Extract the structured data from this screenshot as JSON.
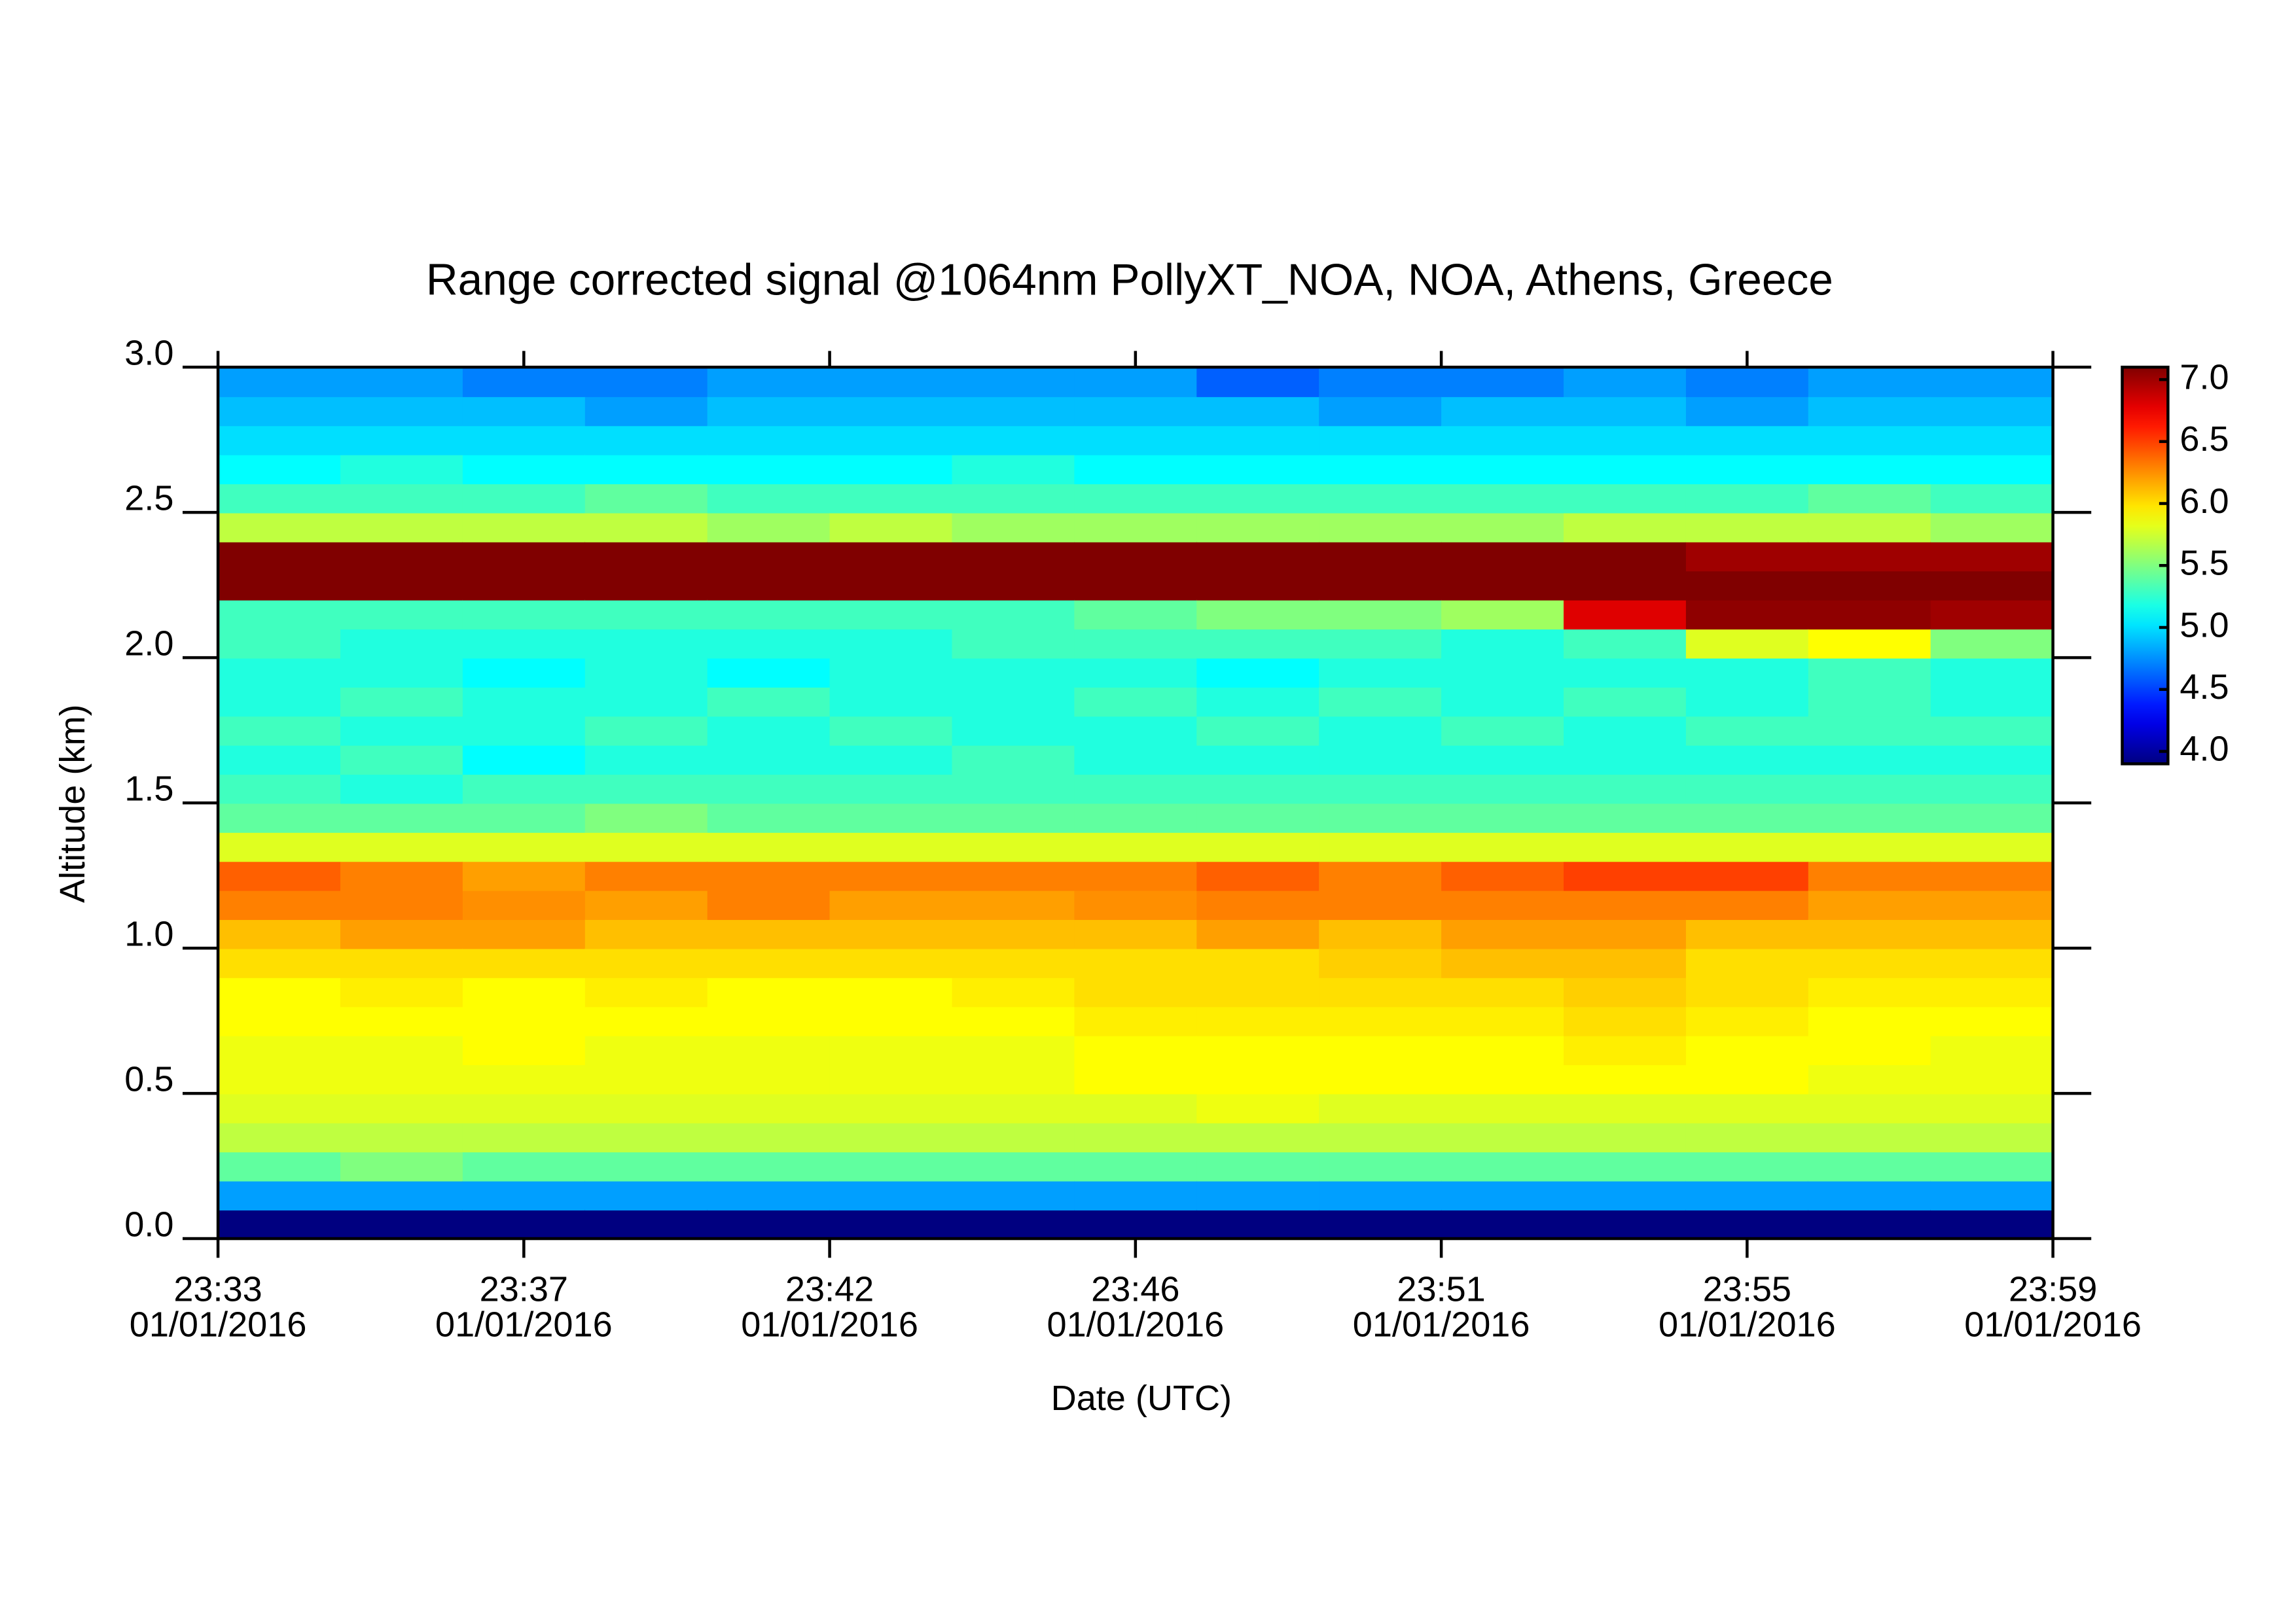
{
  "chart_data": {
    "type": "heatmap",
    "title": "Range corrected signal @1064nm  PollyXT_NOA, NOA, Athens, Greece",
    "x_label": "Date (UTC)",
    "y_label": "Altitude (km)",
    "colormap": "jet",
    "x": [
      "2016-01-01T23:33:00",
      "2016-01-01T23:34:44",
      "2016-01-01T23:36:28",
      "2016-01-01T23:38:12",
      "2016-01-01T23:39:56",
      "2016-01-01T23:41:40",
      "2016-01-01T23:43:24",
      "2016-01-01T23:45:08",
      "2016-01-01T23:46:52",
      "2016-01-01T23:48:36",
      "2016-01-01T23:50:20",
      "2016-01-01T23:52:04",
      "2016-01-01T23:53:48",
      "2016-01-01T23:55:32",
      "2016-01-01T23:57:16"
    ],
    "y": [
      0,
      0.1,
      0.2,
      0.3,
      0.4,
      0.5,
      0.6,
      0.7,
      0.8,
      0.9,
      1.0,
      1.1,
      1.2,
      1.3,
      1.4,
      1.5,
      1.6,
      1.7,
      1.8,
      1.9,
      2.0,
      2.1,
      2.2,
      2.3,
      2.4,
      2.5,
      2.6,
      2.7,
      2.8,
      2.9
    ],
    "z": [
      [
        3.9,
        4.8,
        5.4,
        5.7,
        5.8,
        5.85,
        5.85,
        5.9,
        5.9,
        6.0,
        6.1,
        6.3,
        6.4,
        5.8,
        5.4,
        5.3,
        5.2,
        5.3,
        5.2,
        5.2,
        5.3,
        5.3,
        7.1,
        7.1,
        5.7,
        5.3,
        5.1,
        5.0,
        4.9,
        4.8
      ],
      [
        3.9,
        4.8,
        5.5,
        5.7,
        5.8,
        5.85,
        5.85,
        5.9,
        5.95,
        6.0,
        6.2,
        6.3,
        6.3,
        5.8,
        5.4,
        5.2,
        5.3,
        5.2,
        5.3,
        5.2,
        5.2,
        5.3,
        7.1,
        7.1,
        5.7,
        5.3,
        5.2,
        5.0,
        4.9,
        4.8
      ],
      [
        3.9,
        4.8,
        5.4,
        5.7,
        5.8,
        5.85,
        5.9,
        5.9,
        5.9,
        6.0,
        6.2,
        6.25,
        6.2,
        5.8,
        5.4,
        5.3,
        5.1,
        5.2,
        5.2,
        5.1,
        5.2,
        5.3,
        7.1,
        7.1,
        5.7,
        5.3,
        5.1,
        5.0,
        4.9,
        4.7
      ],
      [
        3.9,
        4.8,
        5.4,
        5.7,
        5.8,
        5.85,
        5.85,
        5.9,
        5.95,
        6.0,
        6.1,
        6.2,
        6.3,
        5.8,
        5.5,
        5.3,
        5.2,
        5.3,
        5.2,
        5.2,
        5.2,
        5.3,
        7.1,
        7.1,
        5.7,
        5.4,
        5.1,
        5.0,
        4.8,
        4.7
      ],
      [
        3.9,
        4.8,
        5.4,
        5.7,
        5.8,
        5.85,
        5.85,
        5.9,
        5.9,
        6.0,
        6.1,
        6.3,
        6.3,
        5.8,
        5.4,
        5.3,
        5.2,
        5.2,
        5.3,
        5.1,
        5.2,
        5.3,
        7.1,
        7.1,
        5.6,
        5.3,
        5.1,
        5.0,
        4.9,
        4.8
      ],
      [
        3.9,
        4.8,
        5.4,
        5.7,
        5.8,
        5.85,
        5.85,
        5.9,
        5.9,
        6.0,
        6.1,
        6.2,
        6.3,
        5.8,
        5.4,
        5.3,
        5.2,
        5.3,
        5.2,
        5.2,
        5.2,
        5.3,
        7.1,
        7.1,
        5.7,
        5.3,
        5.1,
        5.0,
        4.9,
        4.8
      ],
      [
        3.9,
        4.8,
        5.4,
        5.7,
        5.8,
        5.85,
        5.85,
        5.9,
        5.95,
        6.0,
        6.1,
        6.2,
        6.3,
        5.8,
        5.4,
        5.3,
        5.3,
        5.2,
        5.2,
        5.2,
        5.3,
        5.3,
        7.1,
        7.1,
        5.6,
        5.3,
        5.2,
        5.0,
        4.9,
        4.8
      ],
      [
        3.9,
        4.8,
        5.4,
        5.7,
        5.8,
        5.9,
        5.9,
        5.95,
        6.0,
        6.0,
        6.1,
        6.25,
        6.3,
        5.8,
        5.4,
        5.3,
        5.2,
        5.2,
        5.3,
        5.2,
        5.3,
        5.4,
        7.1,
        7.1,
        5.6,
        5.3,
        5.1,
        5.0,
        4.9,
        4.8
      ],
      [
        3.9,
        4.8,
        5.4,
        5.7,
        5.85,
        5.9,
        5.9,
        5.95,
        6.0,
        6.0,
        6.2,
        6.3,
        6.4,
        5.8,
        5.4,
        5.3,
        5.2,
        5.3,
        5.2,
        5.1,
        5.3,
        5.5,
        7.1,
        7.1,
        5.6,
        5.3,
        5.1,
        5.0,
        4.9,
        4.6
      ],
      [
        3.9,
        4.8,
        5.4,
        5.7,
        5.8,
        5.9,
        5.9,
        5.95,
        6.0,
        6.05,
        6.1,
        6.3,
        6.3,
        5.8,
        5.4,
        5.3,
        5.2,
        5.2,
        5.3,
        5.2,
        5.3,
        5.5,
        7.1,
        7.1,
        5.6,
        5.3,
        5.1,
        5.0,
        4.8,
        4.7
      ],
      [
        3.9,
        4.8,
        5.4,
        5.7,
        5.8,
        5.9,
        5.9,
        5.95,
        6.0,
        6.1,
        6.2,
        6.3,
        6.4,
        5.8,
        5.4,
        5.3,
        5.2,
        5.3,
        5.2,
        5.2,
        5.2,
        5.6,
        7.1,
        7.1,
        5.6,
        5.3,
        5.1,
        5.0,
        4.9,
        4.7
      ],
      [
        3.9,
        4.8,
        5.4,
        5.7,
        5.8,
        5.9,
        5.95,
        6.0,
        6.05,
        6.1,
        6.2,
        6.3,
        6.5,
        5.8,
        5.4,
        5.3,
        5.2,
        5.2,
        5.3,
        5.2,
        5.3,
        6.8,
        7.1,
        7.1,
        5.7,
        5.3,
        5.1,
        5.0,
        4.9,
        4.8
      ],
      [
        3.9,
        4.8,
        5.4,
        5.7,
        5.8,
        5.9,
        5.9,
        5.95,
        6.0,
        6.0,
        6.1,
        6.3,
        6.5,
        5.8,
        5.4,
        5.3,
        5.2,
        5.3,
        5.2,
        5.2,
        5.8,
        7.05,
        7.1,
        7.0,
        5.7,
        5.3,
        5.1,
        5.0,
        4.8,
        4.7
      ],
      [
        3.9,
        4.8,
        5.4,
        5.7,
        5.8,
        5.85,
        5.9,
        5.9,
        5.95,
        6.0,
        6.1,
        6.2,
        6.3,
        5.8,
        5.4,
        5.3,
        5.2,
        5.3,
        5.3,
        5.3,
        5.9,
        7.05,
        7.1,
        7.0,
        5.7,
        5.4,
        5.1,
        5.0,
        4.9,
        4.8
      ],
      [
        3.9,
        4.8,
        5.4,
        5.7,
        5.8,
        5.85,
        5.85,
        5.9,
        5.95,
        6.0,
        6.1,
        6.2,
        6.3,
        5.8,
        5.4,
        5.3,
        5.2,
        5.3,
        5.2,
        5.2,
        5.5,
        7.0,
        7.1,
        7.0,
        5.6,
        5.3,
        5.1,
        5.0,
        4.9,
        4.8
      ]
    ],
    "xlim": [
      "2016-01-01T23:33:00",
      "2016-01-01T23:59:00"
    ],
    "xticks": [
      {
        "value": "2016-01-01T23:33:00",
        "label": [
          "23:33",
          "01/01/2016"
        ]
      },
      {
        "value": "2016-01-01T23:37:20",
        "label": [
          "23:37",
          "01/01/2016"
        ]
      },
      {
        "value": "2016-01-01T23:41:40",
        "label": [
          "23:42",
          "01/01/2016"
        ]
      },
      {
        "value": "2016-01-01T23:46:00",
        "label": [
          "23:46",
          "01/01/2016"
        ]
      },
      {
        "value": "2016-01-01T23:50:20",
        "label": [
          "23:51",
          "01/01/2016"
        ]
      },
      {
        "value": "2016-01-01T23:54:40",
        "label": [
          "23:55",
          "01/01/2016"
        ]
      },
      {
        "value": "2016-01-01T23:59:00",
        "label": [
          "23:59",
          "01/01/2016"
        ]
      }
    ],
    "ylim": [
      0,
      3
    ],
    "yticks": [
      {
        "value": 0,
        "label": "0.0"
      },
      0.5,
      {
        "value": 1,
        "label": "1.0"
      },
      1.5,
      {
        "value": 2,
        "label": "2.0"
      },
      2.5,
      {
        "value": 3,
        "label": "3.0"
      }
    ],
    "zlim": [
      3.9,
      7.1
    ],
    "zticks": [
      {
        "value": 4,
        "label": "4.0"
      },
      4.5,
      {
        "value": 5,
        "label": "5.0"
      },
      5.5,
      {
        "value": 6,
        "label": "6.0"
      },
      6.5,
      {
        "value": 7,
        "label": "7.0"
      }
    ]
  }
}
